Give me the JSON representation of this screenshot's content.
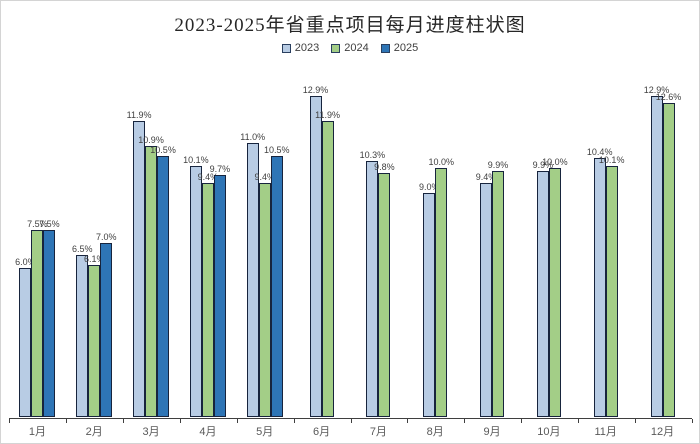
{
  "title": "2023-2025年省重点项目每月进度柱状图",
  "chart_data": {
    "type": "bar",
    "title": "2023-2025年省重点项目每月进度柱状图",
    "categories": [
      "1月",
      "2月",
      "3月",
      "4月",
      "5月",
      "6月",
      "7月",
      "8月",
      "9月",
      "10月",
      "11月",
      "12月"
    ],
    "series": [
      {
        "name": "2023",
        "color": "#b8cce4",
        "values": [
          6.0,
          6.5,
          11.9,
          10.1,
          11.0,
          12.9,
          10.3,
          9.0,
          9.4,
          9.9,
          10.4,
          12.9
        ]
      },
      {
        "name": "2024",
        "color": "#a3ce87",
        "values": [
          7.5,
          6.1,
          10.9,
          9.4,
          9.4,
          11.9,
          9.8,
          10.0,
          9.9,
          10.0,
          10.1,
          12.6
        ]
      },
      {
        "name": "2025",
        "color": "#2e75b6",
        "values": [
          7.5,
          7.0,
          10.5,
          9.7,
          10.5,
          null,
          null,
          null,
          null,
          null,
          null,
          null
        ]
      }
    ],
    "value_suffix": "%",
    "value_decimals": 1,
    "ylim": [
      0,
      14
    ],
    "xlabel": "",
    "ylabel": "",
    "grid": false,
    "y_axis_labels_visible": false,
    "legend_position": "top",
    "bar_border_color": "#17243d",
    "axis_color": "#3f3f3f"
  }
}
